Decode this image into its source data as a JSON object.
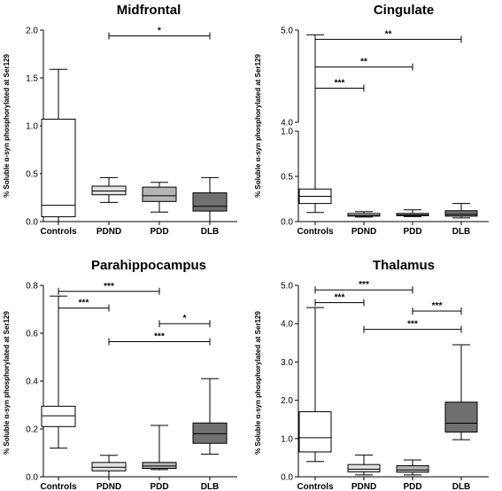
{
  "chart_data": [
    {
      "type": "box",
      "title": "Midfrontal",
      "ylabel": "% Soluble α-syn phosphorylated at Ser129",
      "ylim": [
        0,
        2.0
      ],
      "yticks": [
        "0.0",
        "0.5",
        "1.0",
        "1.5",
        "2.0"
      ],
      "yticks_values": [
        0,
        0.5,
        1.0,
        1.5,
        2.0
      ],
      "categories": [
        "Controls",
        "PDND",
        "PDD",
        "DLB"
      ],
      "boxes": [
        {
          "category": "Controls",
          "min": 0.0,
          "q1": 0.05,
          "median": 0.17,
          "q3": 1.07,
          "max": 1.59,
          "fill": "#ffffff"
        },
        {
          "category": "PDND",
          "min": 0.2,
          "q1": 0.28,
          "median": 0.32,
          "q3": 0.37,
          "max": 0.46,
          "fill": "#e2e2e2"
        },
        {
          "category": "PDD",
          "min": 0.1,
          "q1": 0.21,
          "median": 0.27,
          "q3": 0.36,
          "max": 0.41,
          "fill": "#b4b4b4"
        },
        {
          "category": "DLB",
          "min": 0.0,
          "q1": 0.11,
          "median": 0.16,
          "q3": 0.3,
          "max": 0.46,
          "fill": "#707070"
        }
      ],
      "annotations": [
        {
          "from": "PDND",
          "to": "DLB",
          "y": 1.94,
          "label": "*"
        }
      ]
    },
    {
      "type": "box",
      "title": "Cingulate",
      "ylabel": "% Soluble α-syn phosphorylated at Ser129",
      "axis_break": true,
      "ylim_lower": [
        0,
        1.0
      ],
      "ylim_upper": [
        4.0,
        5.0
      ],
      "yticks": [
        "0.0",
        "0.5",
        "1.0",
        "4.0",
        "5.0"
      ],
      "yticks_values": [
        0,
        0.5,
        1.0,
        4.0,
        5.0
      ],
      "categories": [
        "Controls",
        "PDND",
        "PDD",
        "DLB"
      ],
      "boxes": [
        {
          "category": "Controls",
          "min": 0.1,
          "q1": 0.2,
          "median": 0.28,
          "q3": 0.36,
          "max": 4.95,
          "fill": "#ffffff"
        },
        {
          "category": "PDND",
          "min": 0.05,
          "q1": 0.06,
          "median": 0.07,
          "q3": 0.09,
          "max": 0.11,
          "fill": "#e2e2e2"
        },
        {
          "category": "PDD",
          "min": 0.055,
          "q1": 0.065,
          "median": 0.075,
          "q3": 0.09,
          "max": 0.13,
          "fill": "#b4b4b4"
        },
        {
          "category": "DLB",
          "min": 0.04,
          "q1": 0.06,
          "median": 0.08,
          "q3": 0.12,
          "max": 0.2,
          "fill": "#707070"
        }
      ],
      "annotations": [
        {
          "from": "Controls",
          "to": "PDND",
          "y": 4.37,
          "label": "***"
        },
        {
          "from": "Controls",
          "to": "PDD",
          "y": 4.6,
          "label": "**"
        },
        {
          "from": "Controls",
          "to": "DLB",
          "y": 4.9,
          "label": "**"
        }
      ]
    },
    {
      "type": "box",
      "title": "Parahippocampus",
      "ylabel": "% Soluble α-syn phosphorylated at Ser129",
      "ylim": [
        0,
        0.8
      ],
      "yticks": [
        "0.0",
        "0.2",
        "0.4",
        "0.6",
        "0.8"
      ],
      "yticks_values": [
        0,
        0.2,
        0.4,
        0.6,
        0.8
      ],
      "categories": [
        "Controls",
        "PDND",
        "PDD",
        "DLB"
      ],
      "boxes": [
        {
          "category": "Controls",
          "min": 0.12,
          "q1": 0.21,
          "median": 0.255,
          "q3": 0.295,
          "max": 0.755,
          "fill": "#ffffff"
        },
        {
          "category": "PDND",
          "min": 0.0,
          "q1": 0.025,
          "median": 0.04,
          "q3": 0.06,
          "max": 0.09,
          "fill": "#e2e2e2"
        },
        {
          "category": "PDD",
          "min": 0.03,
          "q1": 0.035,
          "median": 0.045,
          "q3": 0.06,
          "max": 0.215,
          "fill": "#b4b4b4"
        },
        {
          "category": "DLB",
          "min": 0.095,
          "q1": 0.14,
          "median": 0.18,
          "q3": 0.225,
          "max": 0.41,
          "fill": "#707070"
        }
      ],
      "annotations": [
        {
          "from": "Controls",
          "to": "PDND",
          "y": 0.705,
          "label": "***"
        },
        {
          "from": "Controls",
          "to": "PDD",
          "y": 0.775,
          "label": "***"
        },
        {
          "from": "PDD",
          "to": "DLB",
          "y": 0.64,
          "label": "*"
        },
        {
          "from": "PDND",
          "to": "DLB",
          "y": 0.565,
          "label": "***"
        }
      ]
    },
    {
      "type": "box",
      "title": "Thalamus",
      "ylabel": "% Soluble α-syn phosphorylated at Ser129",
      "ylim": [
        0,
        5.0
      ],
      "yticks": [
        "0.0",
        "1.0",
        "2.0",
        "3.0",
        "4.0",
        "5.0"
      ],
      "yticks_values": [
        0,
        1,
        2,
        3,
        4,
        5
      ],
      "categories": [
        "Controls",
        "PDND",
        "PDD",
        "DLB"
      ],
      "boxes": [
        {
          "category": "Controls",
          "min": 0.4,
          "q1": 0.65,
          "median": 1.02,
          "q3": 1.7,
          "max": 4.42,
          "fill": "#ffffff"
        },
        {
          "category": "PDND",
          "min": 0.05,
          "q1": 0.13,
          "median": 0.2,
          "q3": 0.32,
          "max": 0.57,
          "fill": "#e2e2e2"
        },
        {
          "category": "PDD",
          "min": 0.05,
          "q1": 0.12,
          "median": 0.18,
          "q3": 0.29,
          "max": 0.44,
          "fill": "#b4b4b4"
        },
        {
          "category": "DLB",
          "min": 0.97,
          "q1": 1.17,
          "median": 1.4,
          "q3": 1.95,
          "max": 3.45,
          "fill": "#707070"
        }
      ],
      "annotations": [
        {
          "from": "Controls",
          "to": "PDND",
          "y": 4.55,
          "label": "***"
        },
        {
          "from": "Controls",
          "to": "PDD",
          "y": 4.88,
          "label": "***"
        },
        {
          "from": "PDD",
          "to": "DLB",
          "y": 4.33,
          "label": "***"
        },
        {
          "from": "PDND",
          "to": "DLB",
          "y": 3.85,
          "label": "***"
        }
      ]
    }
  ]
}
